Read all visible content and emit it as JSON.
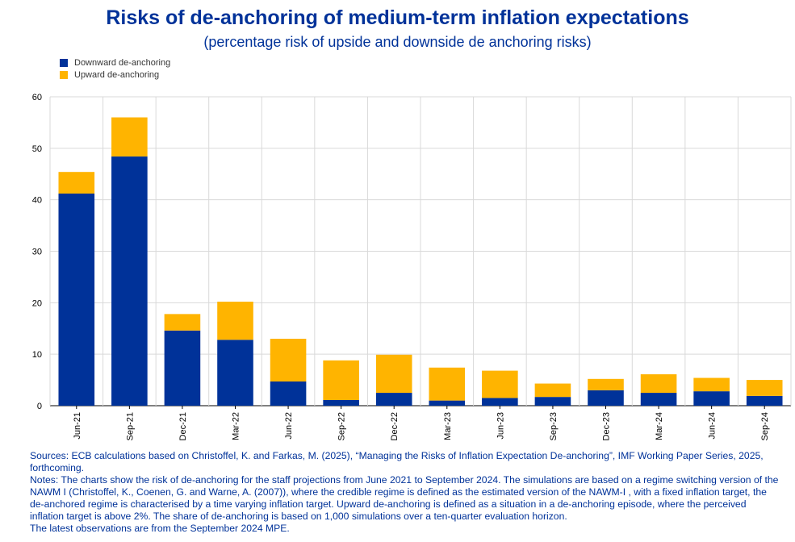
{
  "chart_title": "Risks of de-anchoring of medium-term inflation expectations",
  "chart_subtitle": "(percentage risk of upside and downside de anchoring risks)",
  "legend": [
    {
      "label": "Downward de-anchoring",
      "color": "#003299"
    },
    {
      "label": "Upward de-anchoring",
      "color": "#FFB400"
    }
  ],
  "chart_data": {
    "type": "bar",
    "stacked": true,
    "categories": [
      "Jun-21",
      "Sep-21",
      "Dec-21",
      "Mar-22",
      "Jun-22",
      "Sep-22",
      "Dec-22",
      "Mar-23",
      "Jun-23",
      "Sep-23",
      "Dec-23",
      "Mar-24",
      "Jun-24",
      "Sep-24"
    ],
    "series": [
      {
        "name": "Downward de-anchoring",
        "color": "#003299",
        "values": [
          41.2,
          48.4,
          14.6,
          12.8,
          4.7,
          1.1,
          2.5,
          1.0,
          1.5,
          1.7,
          3.0,
          2.5,
          2.8,
          1.9
        ]
      },
      {
        "name": "Upward de-anchoring",
        "color": "#FFB400",
        "values": [
          4.2,
          7.6,
          3.2,
          7.4,
          8.3,
          7.7,
          7.4,
          6.4,
          5.3,
          2.6,
          2.2,
          3.6,
          2.6,
          3.1
        ]
      }
    ],
    "ylim": [
      0,
      60
    ],
    "yticks": [
      0,
      10,
      20,
      30,
      40,
      50,
      60
    ],
    "grid": true,
    "legend_position": "top-left",
    "xlabel": "",
    "ylabel": ""
  },
  "notes": {
    "sources": "Sources: ECB calculations based on Christoffel, K. and Farkas, M. (2025), “Managing the Risks of Inflation Expectation De-anchoring”, IMF Working Paper Series, 2025, forthcoming.",
    "notes": "Notes: The charts show the risk of de-anchoring for the staff projections from June 2021 to September 2024. The simulations are based on a regime switching version of the NAWM I (Christoffel, K., Coenen, G. and Warne, A. (2007)), where the credible regime is defined as the estimated version of the NAWM-I , with a fixed inflation target, the de-anchored regime is characterised by a time varying inflation target. Upward de-anchoring is defined as a situation in a de-anchoring episode, where the perceived inflation target is above 2%. The share of de-anchoring is based on 1,000 simulations over a ten-quarter evaluation horizon.",
    "latest": "The latest observations are from the September 2024 MPE."
  }
}
